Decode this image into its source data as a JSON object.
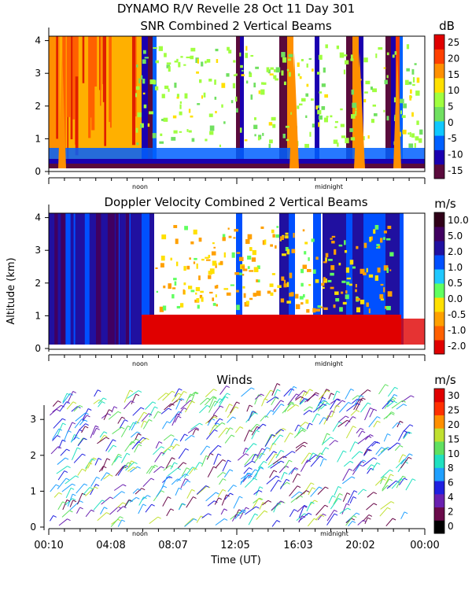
{
  "header": {
    "title": "DYNAMO R/V Revelle  28 Oct 11 Day 301"
  },
  "colors": {
    "snr_palette": [
      "#5a0a3c",
      "#1a00b0",
      "#0060ff",
      "#10c8ff",
      "#70e060",
      "#a0ff40",
      "#ffe000",
      "#ff9000",
      "#ff4000",
      "#e00000"
    ],
    "vel_palette": [
      "#e00000",
      "#ff6000",
      "#ffa000",
      "#ffe000",
      "#60ff60",
      "#20c8ff",
      "#0050ff",
      "#2010a0",
      "#400060",
      "#300018"
    ],
    "wind_palette": [
      "#000000",
      "#6a0a4a",
      "#6a20b0",
      "#2020e0",
      "#20a0ff",
      "#20e0c0",
      "#60e060",
      "#c0e030",
      "#ff9000",
      "#ff3000",
      "#e00000"
    ]
  },
  "chart_data": [
    {
      "type": "heatmap",
      "name": "snr",
      "title": "SNR Combined 2 Vertical Beams",
      "xlabel": "",
      "ylabel": "",
      "ylim": [
        0,
        4.2
      ],
      "yticks": [
        "0",
        "1",
        "2",
        "3",
        "4"
      ],
      "xmarks": [
        "noon",
        "midnight"
      ],
      "colorbar_unit": "dB",
      "colorbar_ticks": [
        "25",
        "20",
        "15",
        "10",
        "5",
        "0",
        "-5",
        "-10",
        "-15"
      ],
      "description_values": {
        "hours_start": 0.17,
        "hours_end": 24.0
      }
    },
    {
      "type": "heatmap",
      "name": "velocity",
      "title": "Doppler Velocity Combined 2 Vertical Beams",
      "xlabel": "",
      "ylabel": "Altitude (km)",
      "ylim": [
        0,
        4.2
      ],
      "yticks": [
        "0",
        "1",
        "2",
        "3",
        "4"
      ],
      "xmarks": [
        "noon",
        "midnight"
      ],
      "colorbar_unit": "m/s",
      "colorbar_ticks": [
        "10.0",
        "5.0",
        "2.0",
        "1.0",
        "0.5",
        "0.0",
        "-0.5",
        "-1.0",
        "-2.0"
      ]
    },
    {
      "type": "scatter",
      "name": "winds",
      "title": "Winds",
      "xlabel": "Time (UT)",
      "ylabel": "",
      "ylim": [
        0,
        4.0
      ],
      "yticks": [
        "0",
        "1",
        "2",
        "3"
      ],
      "xmarks": [
        "noon",
        "midnight"
      ],
      "xticklabels": [
        "00:10",
        "04:08",
        "08:07",
        "12:05",
        "16:03",
        "20:02",
        "00:00"
      ],
      "colorbar_unit": "m/s",
      "colorbar_ticks": [
        "30",
        "25",
        "20",
        "15",
        "10",
        "8",
        "6",
        "4",
        "2",
        "0"
      ]
    }
  ]
}
